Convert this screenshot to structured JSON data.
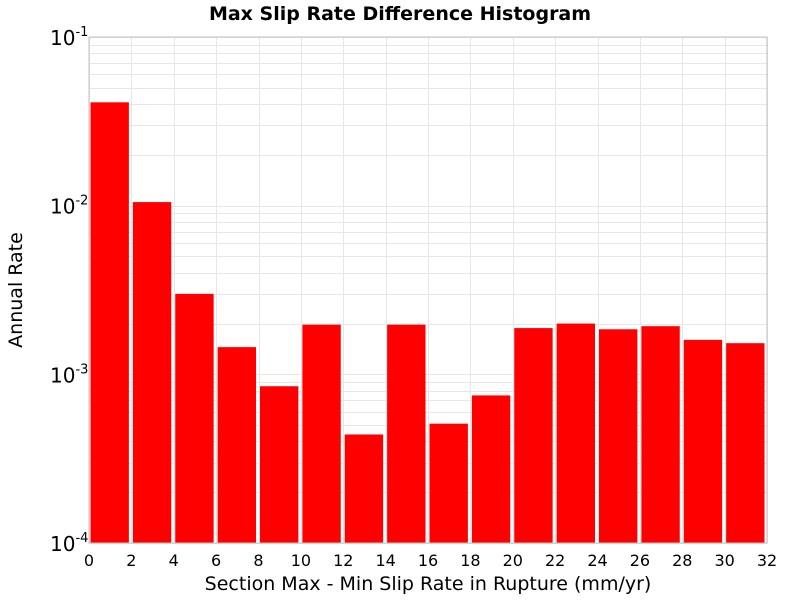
{
  "chart_data": {
    "type": "bar",
    "title": "Max Slip Rate Difference Histogram",
    "xlabel": "Section Max - Min Slip Rate in Rupture (mm/yr)",
    "ylabel": "Annual Rate",
    "yscale": "log",
    "xlim": [
      0,
      32
    ],
    "ylim": [
      0.0001,
      0.1
    ],
    "grid": true,
    "bar_color": "#ff0000",
    "bin_width": 2,
    "x_ticks": [
      "0",
      "2",
      "4",
      "6",
      "8",
      "10",
      "12",
      "14",
      "16",
      "18",
      "20",
      "22",
      "24",
      "26",
      "28",
      "30",
      "32"
    ],
    "y_ticks": [
      {
        "base": "10",
        "exp": "-4",
        "value": 0.0001
      },
      {
        "base": "10",
        "exp": "-3",
        "value": 0.001
      },
      {
        "base": "10",
        "exp": "-2",
        "value": 0.01
      },
      {
        "base": "10",
        "exp": "-1",
        "value": 0.1
      }
    ],
    "bins": [
      {
        "x_start": 0,
        "x_end": 2,
        "value": 0.041
      },
      {
        "x_start": 2,
        "x_end": 4,
        "value": 0.0105
      },
      {
        "x_start": 4,
        "x_end": 6,
        "value": 0.003
      },
      {
        "x_start": 6,
        "x_end": 8,
        "value": 0.00145
      },
      {
        "x_start": 8,
        "x_end": 10,
        "value": 0.00085
      },
      {
        "x_start": 10,
        "x_end": 12,
        "value": 0.00197
      },
      {
        "x_start": 12,
        "x_end": 14,
        "value": 0.00044
      },
      {
        "x_start": 14,
        "x_end": 16,
        "value": 0.00197
      },
      {
        "x_start": 16,
        "x_end": 18,
        "value": 0.00051
      },
      {
        "x_start": 18,
        "x_end": 20,
        "value": 0.00075
      },
      {
        "x_start": 20,
        "x_end": 22,
        "value": 0.00188
      },
      {
        "x_start": 22,
        "x_end": 24,
        "value": 0.002
      },
      {
        "x_start": 24,
        "x_end": 26,
        "value": 0.00185
      },
      {
        "x_start": 26,
        "x_end": 28,
        "value": 0.00193
      },
      {
        "x_start": 28,
        "x_end": 30,
        "value": 0.0016
      },
      {
        "x_start": 30,
        "x_end": 32,
        "value": 0.00153
      }
    ]
  }
}
